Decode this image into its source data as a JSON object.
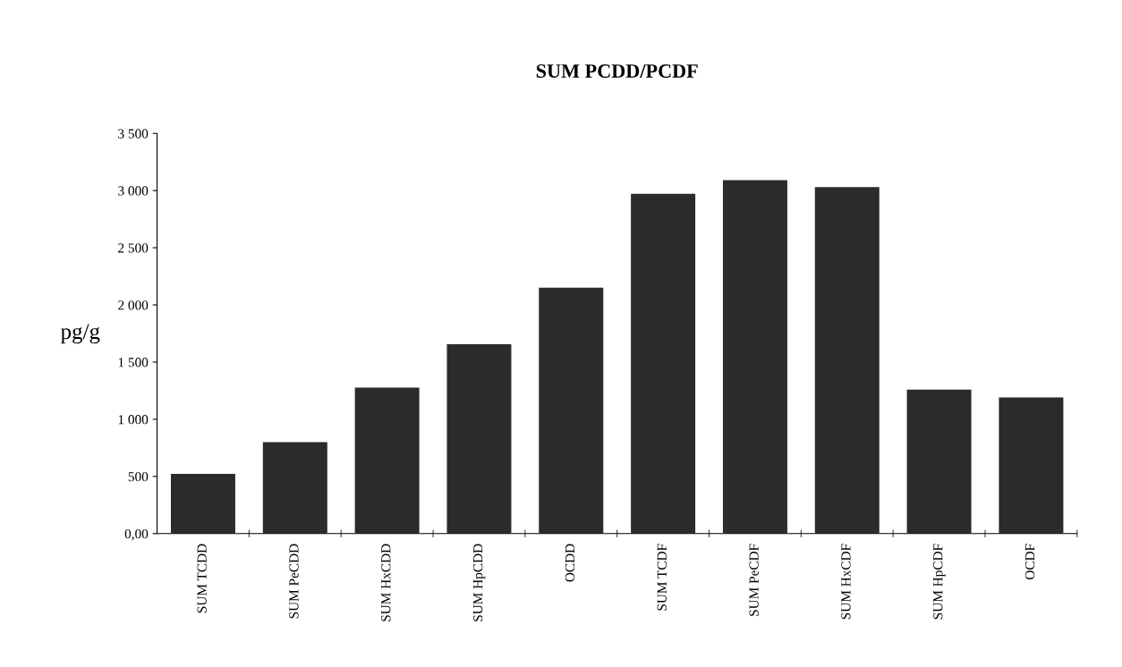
{
  "chart_data": {
    "type": "bar",
    "title": "SUM PCDD/PCDF",
    "ylabel": "pg/g",
    "categories": [
      "SUM TCDD",
      "SUM PeCDD",
      "SUM HxCDD",
      "SUM HpCDD",
      "OCDD",
      "SUM TCDF",
      "SUM PeCDF",
      "SUM HxCDF",
      "SUM HpCDF",
      "OCDF"
    ],
    "values": [
      523,
      799,
      1276,
      1657,
      2150,
      2972,
      3092,
      3031,
      1259,
      1190
    ],
    "color": "#2b2b2b",
    "ylim": [
      0,
      3500
    ],
    "yticks": [
      {
        "value": 0,
        "label": "0,00"
      },
      {
        "value": 500,
        "label": "500"
      },
      {
        "value": 1000,
        "label": "1 000"
      },
      {
        "value": 1500,
        "label": "1 500"
      },
      {
        "value": 2000,
        "label": "2 000"
      },
      {
        "value": 2500,
        "label": "2 500"
      },
      {
        "value": 3000,
        "label": "3 000"
      },
      {
        "value": 3500,
        "label": "3 500"
      }
    ],
    "grid": false,
    "legend": false
  }
}
